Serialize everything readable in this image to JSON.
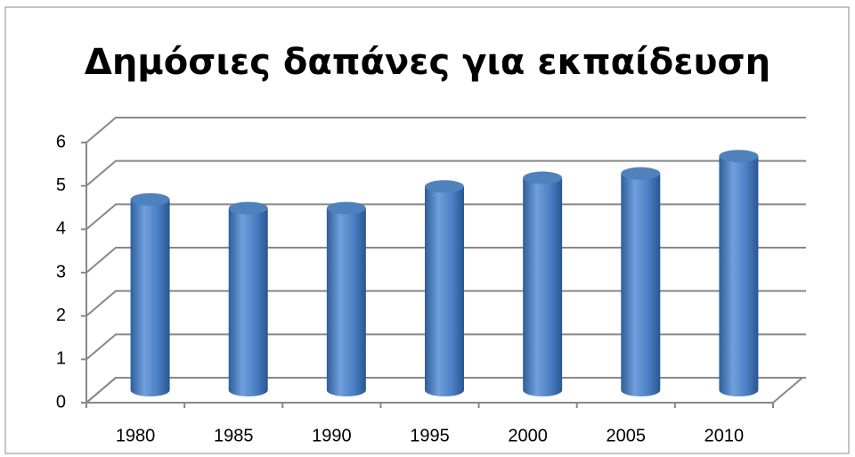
{
  "chart_data": {
    "type": "bar",
    "title": "Δημόσιες δαπάνες για εκπαίδευση",
    "categories": [
      "1980",
      "1985",
      "1990",
      "1995",
      "2000",
      "2005",
      "2010"
    ],
    "values": [
      4.4,
      4.2,
      4.2,
      4.7,
      4.9,
      5.0,
      5.4
    ],
    "color": "#4f81bd",
    "ylim": [
      0,
      6
    ],
    "yticks": [
      0,
      1,
      2,
      3,
      4,
      5,
      6
    ],
    "grid": true
  }
}
